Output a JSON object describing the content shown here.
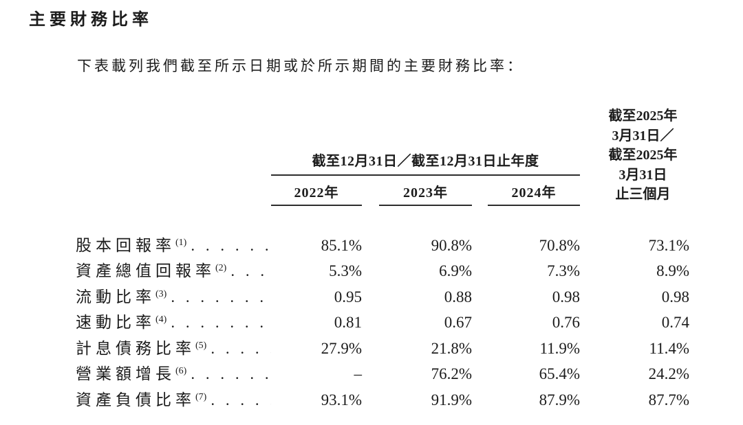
{
  "page": {
    "title": "主要財務比率",
    "intro": "下表載列我們截至所示日期或於所示期間的主要財務比率："
  },
  "table": {
    "group_header": "截至12月31日／截至12月31日止年度",
    "year_headers": [
      "2022年",
      "2023年",
      "2024年"
    ],
    "period_header_lines": [
      "截至2025年",
      "3月31日／",
      "截至2025年",
      "3月31日",
      "止三個月"
    ],
    "rows": [
      {
        "label": "股本回報率",
        "footnote": "(1)",
        "leader": ". . . . . . .",
        "values": [
          "85.1%",
          "90.8%",
          "70.8%",
          "73.1%"
        ]
      },
      {
        "label": "資產總值回報率",
        "footnote": "(2)",
        "leader": ". . . .",
        "values": [
          "5.3%",
          "6.9%",
          "7.3%",
          "8.9%"
        ]
      },
      {
        "label": "流動比率",
        "footnote": "(3)",
        "leader": ". . . . . . . . .",
        "values": [
          "0.95",
          "0.88",
          "0.98",
          "0.98"
        ]
      },
      {
        "label": "速動比率",
        "footnote": "(4)",
        "leader": ". . . . . . . . .",
        "values": [
          "0.81",
          "0.67",
          "0.76",
          "0.74"
        ]
      },
      {
        "label": "計息債務比率",
        "footnote": "(5)",
        "leader": ". . . . .",
        "values": [
          "27.9%",
          "21.8%",
          "11.9%",
          "11.4%"
        ]
      },
      {
        "label": "營業額增長",
        "footnote": "(6)",
        "leader": ". . . . . . .",
        "values": [
          "–",
          "76.2%",
          "65.4%",
          "24.2%"
        ]
      },
      {
        "label": "資產負債比率",
        "footnote": "(7)",
        "leader": ". . . . .",
        "values": [
          "93.1%",
          "91.9%",
          "87.9%",
          "87.7%"
        ]
      }
    ],
    "colors": {
      "text": "#1c1c1c",
      "rule": "#2c2c2c",
      "background": "#ffffff"
    }
  }
}
